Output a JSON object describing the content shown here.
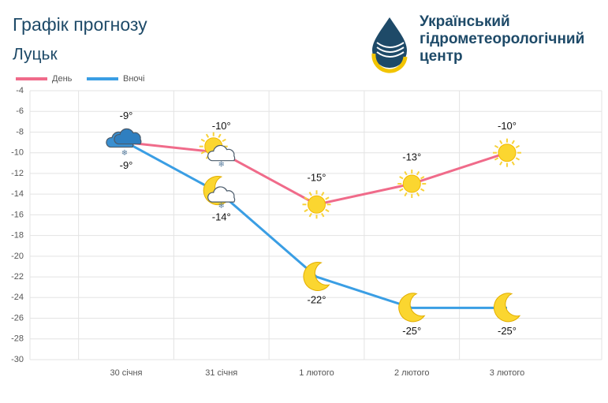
{
  "chart_data": {
    "type": "line",
    "title": "Графік прогнозу",
    "subtitle": "Луцьк",
    "categories": [
      "30 січня",
      "31 січня",
      "1 лютого",
      "2 лютого",
      "3 лютого"
    ],
    "series": [
      {
        "name": "День",
        "color": "#f06b8a",
        "values": [
          -9,
          -10,
          -15,
          -13,
          -10
        ],
        "value_labels": [
          "-9°",
          "-10°",
          "-15°",
          "-13°",
          "-10°"
        ]
      },
      {
        "name": "Вночі",
        "color": "#3a9ee4",
        "values": [
          -9,
          -14,
          -22,
          -25,
          -25
        ],
        "value_labels": [
          "-9°",
          "-14°",
          "-22°",
          "-25°",
          "-25°"
        ]
      }
    ],
    "ylim": [
      -30,
      -4
    ],
    "yticks": [
      -4,
      -6,
      -8,
      -10,
      -12,
      -14,
      -16,
      -18,
      -20,
      -22,
      -24,
      -26,
      -28,
      -30
    ],
    "grid": true
  },
  "logo": {
    "lines": [
      "Український",
      "гідрометеорологічний",
      "центр"
    ]
  }
}
